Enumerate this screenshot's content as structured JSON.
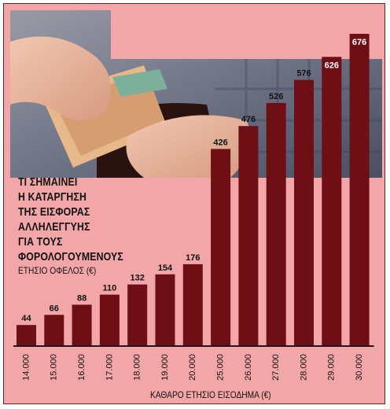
{
  "chart_data": {
    "type": "bar",
    "title_lines": [
      "ΤΙ ΣΗΜΑΙΝΕΙ",
      "Η ΚΑΤΑΡΓΗΣΗ",
      "ΤΗΣ ΕΙΣΦΟΡΑΣ",
      "ΑΛΛΗΛΕΓΓΥΗΣ",
      "ΓΙΑ ΤΟΥΣ",
      "ΦΟΡΟΛΟΓΟΥΜΕΝΟΥΣ"
    ],
    "ylabel": "ΕΤΗΣΙΟ ΟΦΕΛΟΣ (€)",
    "xlabel": "ΚΑΘΑΡΟ ΕΤΗΣΙΟ ΕΙΣΟΔΗΜΑ (€)",
    "categories": [
      "14.000",
      "15.000",
      "16.000",
      "17.000",
      "18.000",
      "19.000",
      "20.000",
      "25.000",
      "26.000",
      "27.000",
      "28.000",
      "29.000",
      "30.000"
    ],
    "values": [
      44,
      66,
      88,
      110,
      132,
      154,
      176,
      426,
      476,
      526,
      576,
      626,
      676
    ],
    "ylim": [
      0,
      676
    ],
    "bar_color": "#6e0f16",
    "background_color": "#f3a6a7"
  }
}
